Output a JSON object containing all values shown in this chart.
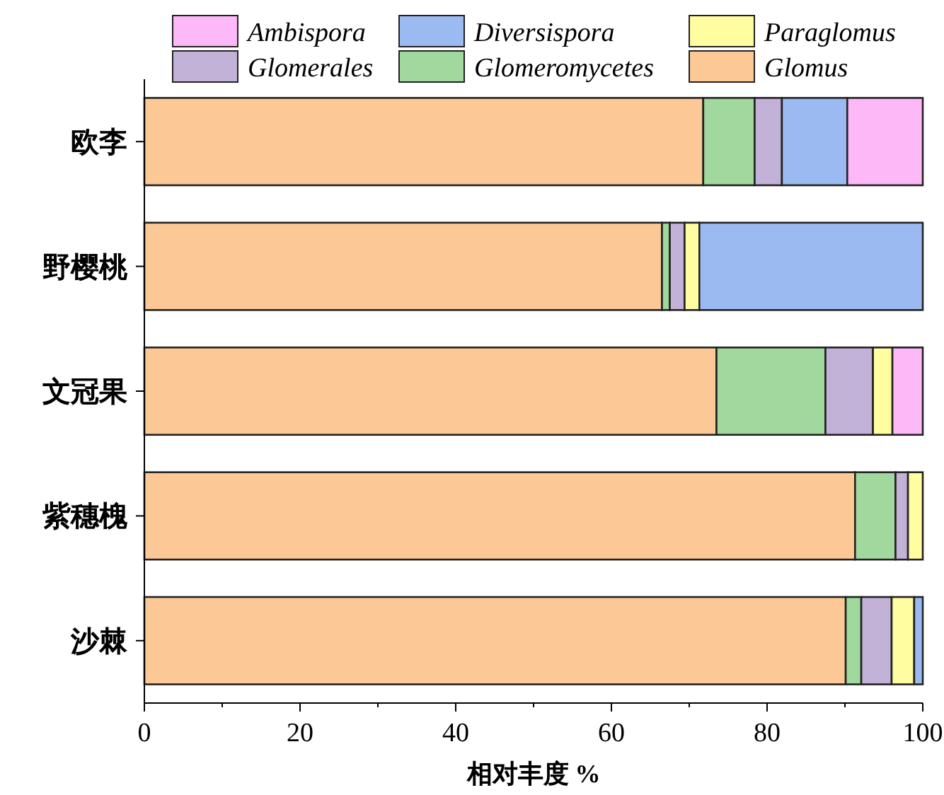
{
  "chart_data": {
    "type": "bar",
    "orientation": "horizontal",
    "stacked": true,
    "xlabel": "相对丰度 %",
    "categories": [
      "欧李",
      "野樱桃",
      "文冠果",
      "紫穗槐",
      "沙棘"
    ],
    "series": [
      {
        "name": "Glomus",
        "color": "#fcc896",
        "values": [
          71.8,
          66.5,
          73.5,
          91.3,
          90.1
        ]
      },
      {
        "name": "Glomeromycetes",
        "color": "#a0d89d",
        "values": [
          6.6,
          1.0,
          14.0,
          5.2,
          2.0
        ]
      },
      {
        "name": "Glomerales",
        "color": "#c2b2d8",
        "values": [
          3.5,
          1.9,
          6.1,
          1.6,
          3.9
        ]
      },
      {
        "name": "Paraglomus",
        "color": "#fffd9f",
        "values": [
          0,
          1.9,
          2.5,
          1.9,
          2.9
        ]
      },
      {
        "name": "Diversispora",
        "color": "#9bbaf2",
        "values": [
          8.4,
          28.7,
          0,
          0,
          1.1
        ]
      },
      {
        "name": "Ambispora",
        "color": "#fdb8f8",
        "values": [
          9.7,
          0,
          3.9,
          0,
          0
        ]
      }
    ],
    "xlim": [
      0,
      100
    ],
    "xticks": [
      0,
      20,
      40,
      60,
      80,
      100
    ],
    "legend": "top",
    "grid": false
  }
}
